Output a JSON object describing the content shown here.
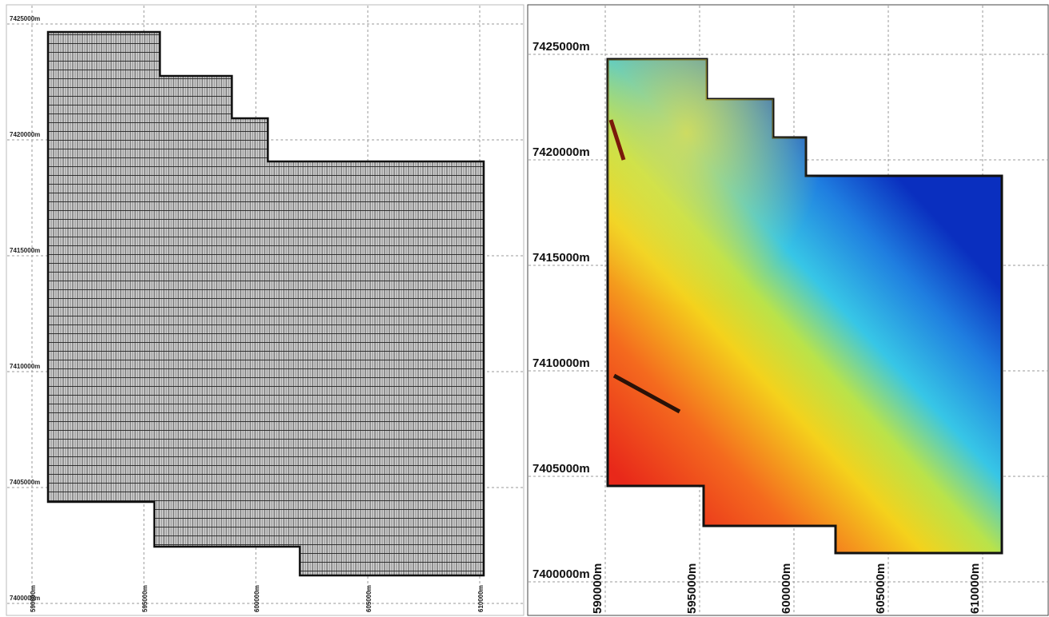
{
  "maps": [
    {
      "yticks": [
        {
          "value": 7425000,
          "label": "7425000m"
        },
        {
          "value": 7420000,
          "label": "7420000m"
        },
        {
          "value": 7415000,
          "label": "7415000m"
        },
        {
          "value": 7410000,
          "label": "7410000m"
        },
        {
          "value": 7405000,
          "label": "7405000m"
        },
        {
          "value": 7400000,
          "label": "7400000m"
        }
      ],
      "xticks": [
        {
          "value": 590000,
          "label": "590000m"
        },
        {
          "value": 595000,
          "label": "595000m"
        },
        {
          "value": 600000,
          "label": "600000m"
        },
        {
          "value": 605000,
          "label": "605000m"
        },
        {
          "value": 610000,
          "label": "610000m"
        }
      ]
    },
    {
      "yticks": [
        {
          "value": 7425000,
          "label": "7425000m"
        },
        {
          "value": 7420000,
          "label": "7420000m"
        },
        {
          "value": 7415000,
          "label": "7415000m"
        },
        {
          "value": 7410000,
          "label": "7410000m"
        },
        {
          "value": 7405000,
          "label": "7405000m"
        },
        {
          "value": 7400000,
          "label": "7400000m"
        }
      ],
      "xticks": [
        {
          "value": 590000,
          "label": "590000m"
        },
        {
          "value": 595000,
          "label": "595000m"
        },
        {
          "value": 600000,
          "label": "600000m"
        },
        {
          "value": 605000,
          "label": "605000m"
        },
        {
          "value": 610000,
          "label": "610000m"
        }
      ]
    }
  ]
}
